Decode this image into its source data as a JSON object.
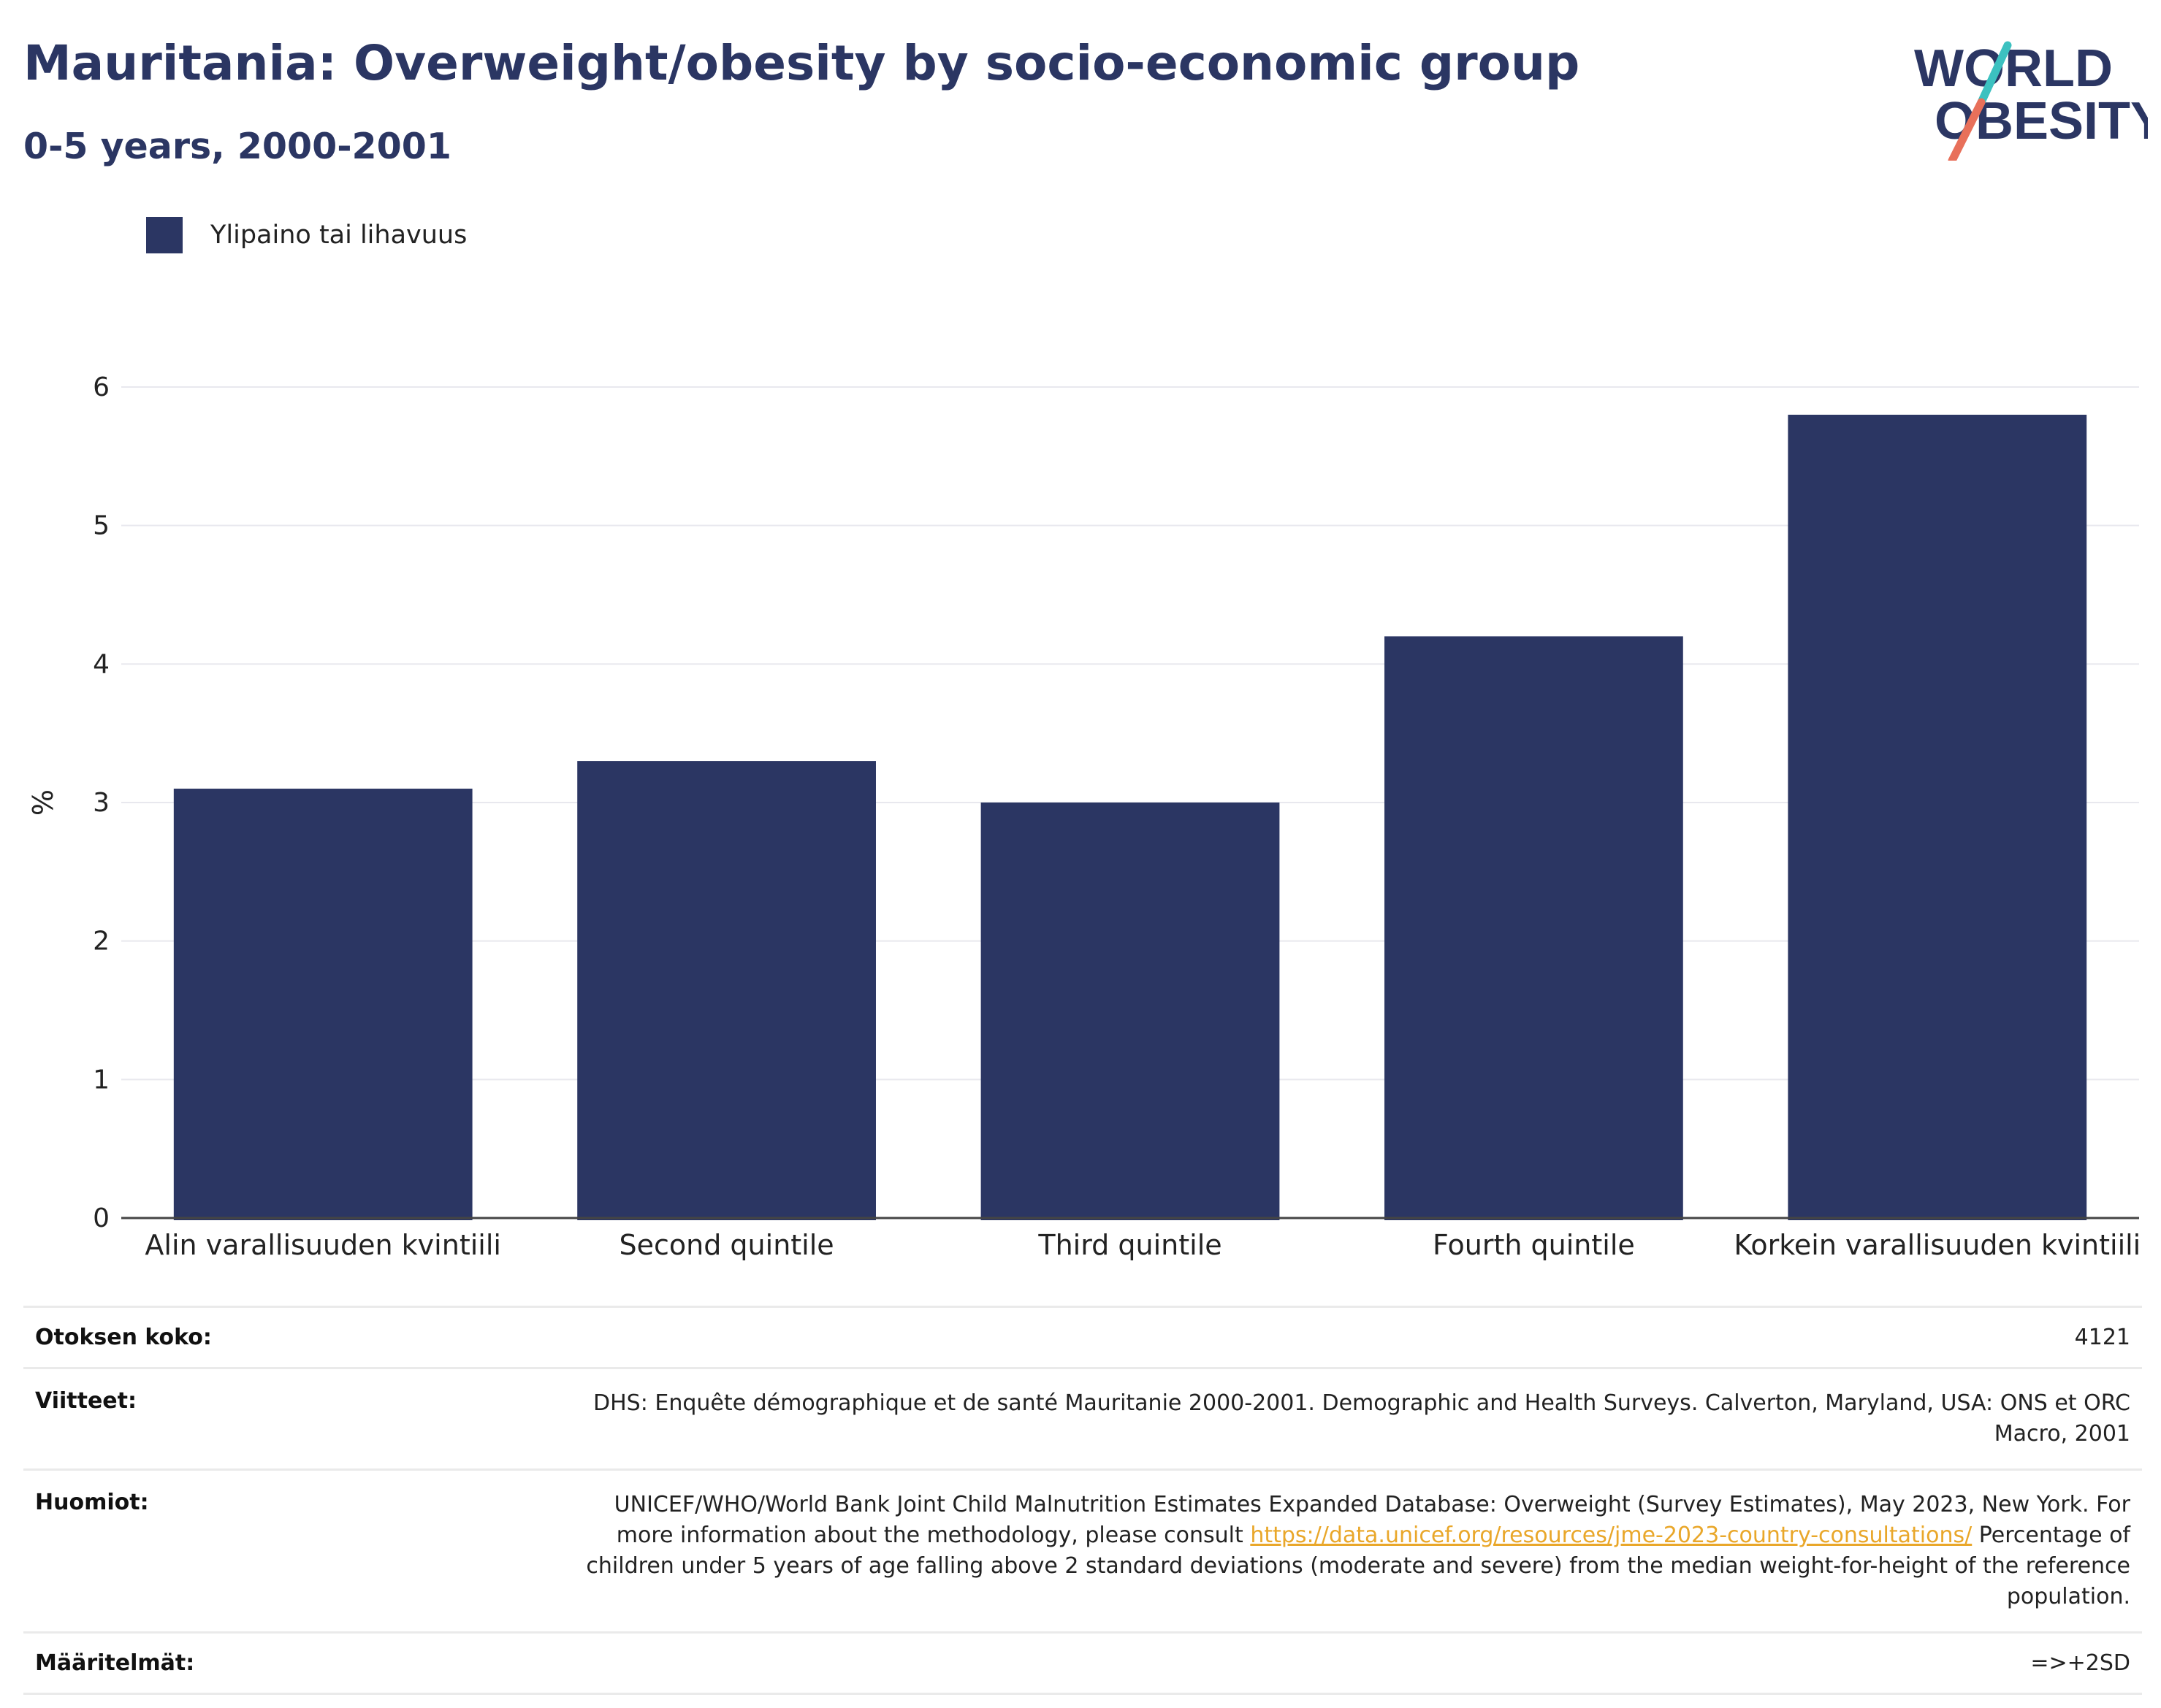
{
  "title": "Mauritania: Overweight/obesity by socio-economic group",
  "subtitle": "0-5 years, 2000-2001",
  "logo": {
    "line1": "WORLD",
    "line2": "OBESITY",
    "colors": {
      "text": "#2b3663",
      "slash_top": "#3cc1c0",
      "slash_bottom": "#e8705a"
    }
  },
  "legend": {
    "label": "Ylipaino tai lihavuus",
    "color": "#2b3663"
  },
  "chart_data": {
    "type": "bar",
    "categories": [
      "Alin varallisuuden kvintiili",
      "Second quintile",
      "Third quintile",
      "Fourth quintile",
      "Korkein varallisuuden kvintiili"
    ],
    "series": [
      {
        "name": "Ylipaino tai lihavuus",
        "values": [
          3.1,
          3.3,
          3.0,
          4.2,
          5.8
        ],
        "color": "#2b3663"
      }
    ],
    "ylabel": "%",
    "ylim": [
      0,
      6
    ],
    "yticks": [
      0,
      1,
      2,
      3,
      4,
      5,
      6
    ],
    "grid": true
  },
  "table": {
    "sample_label": "Otoksen koko:",
    "sample_value": "4121",
    "refs_label": "Viitteet:",
    "refs_value": "DHS: Enquête démographique et de santé Mauritanie 2000-2001. Demographic and Health Surveys. Calverton, Maryland, USA: ONS et ORC Macro, 2001",
    "notes_label": "Huomiot:",
    "notes_text1": "UNICEF/WHO/World Bank Joint Child Malnutrition Estimates Expanded Database: Overweight (Survey Estimates), May 2023, New York. For more information about the methodology, please consult ",
    "notes_link": "https://data.unicef.org/resources/jme-2023-country-consultations/",
    "notes_text2": " Percentage of children under 5 years of age falling above 2 standard deviations (moderate and severe) from the median weight-for-height of the reference population.",
    "defs_label": "Määritelmät:",
    "defs_value": "=>+2SD"
  }
}
